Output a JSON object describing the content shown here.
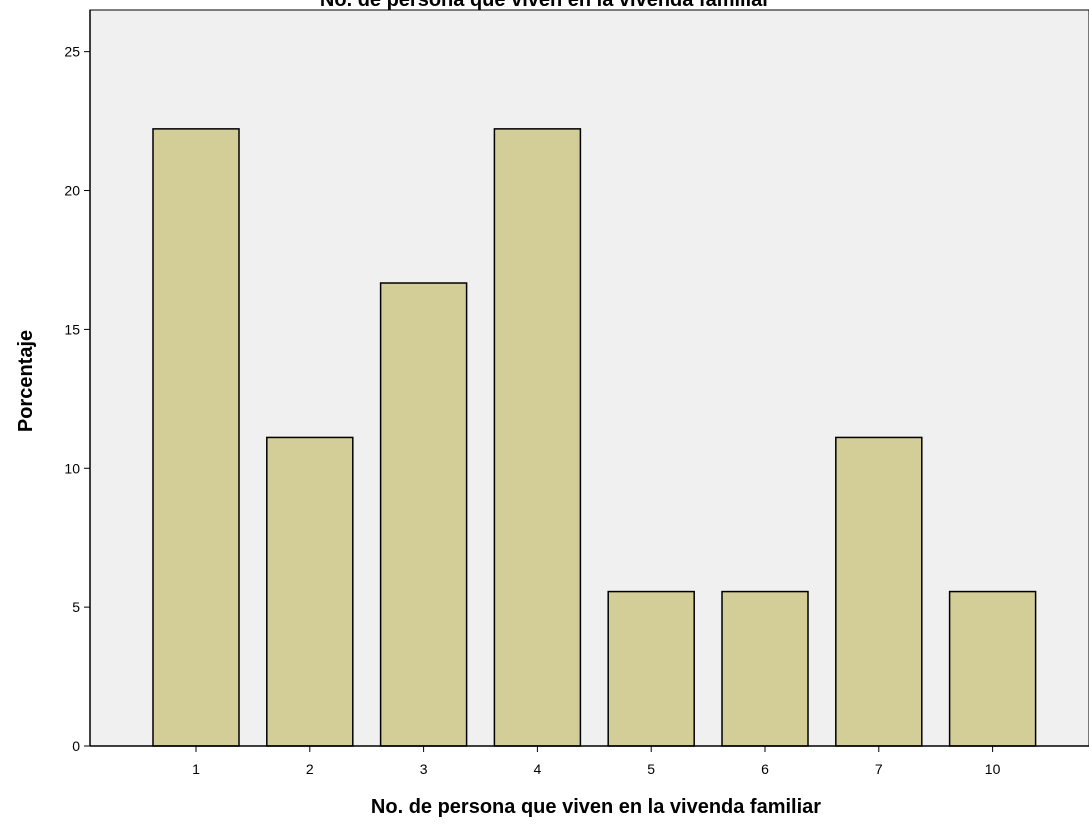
{
  "chart_data": {
    "type": "bar",
    "title": "No. de persona que viven en la vivenda familiar",
    "xlabel": "No. de persona que viven en la vivenda familiar",
    "ylabel": "Porcentaje",
    "categories": [
      "1",
      "2",
      "3",
      "4",
      "5",
      "6",
      "7",
      "10"
    ],
    "values": [
      22.22,
      11.11,
      16.67,
      22.22,
      5.56,
      5.56,
      11.11,
      5.56
    ],
    "yticks": [
      "0",
      "5",
      "10",
      "15",
      "20",
      "25"
    ],
    "ylim": [
      0,
      26.5
    ],
    "grid": false,
    "legend": "none",
    "colors": {
      "plot_background": "#f0f0f0",
      "bar_fill": "#d3ce97",
      "bar_stroke": "#000000"
    }
  }
}
